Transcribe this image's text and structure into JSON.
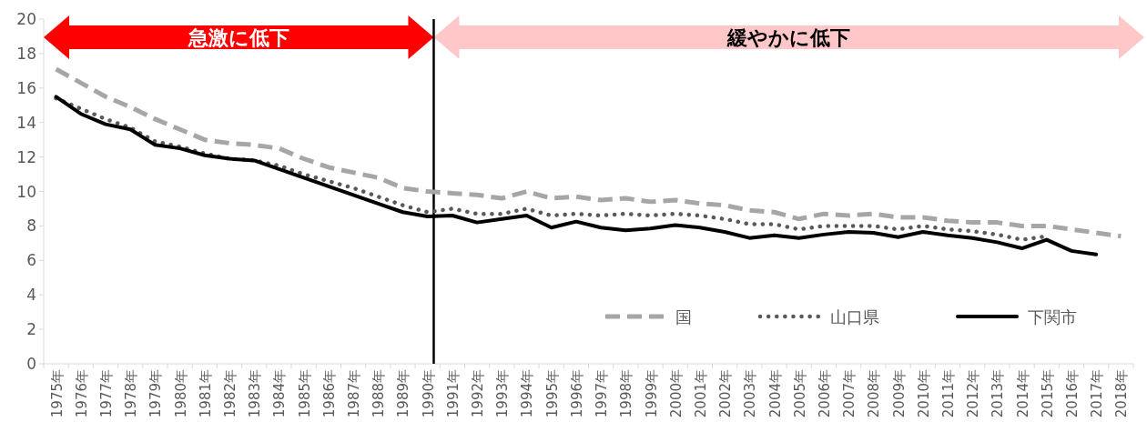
{
  "chart_data": {
    "type": "line",
    "categories": [
      "1975年",
      "1976年",
      "1977年",
      "1978年",
      "1979年",
      "1980年",
      "1981年",
      "1982年",
      "1983年",
      "1984年",
      "1985年",
      "1986年",
      "1987年",
      "1988年",
      "1989年",
      "1990年",
      "1991年",
      "1992年",
      "1993年",
      "1994年",
      "1995年",
      "1996年",
      "1997年",
      "1998年",
      "1999年",
      "2000年",
      "2001年",
      "2002年",
      "2003年",
      "2004年",
      "2005年",
      "2006年",
      "2007年",
      "2008年",
      "2009年",
      "2010年",
      "2011年",
      "2012年",
      "2013年",
      "2014年",
      "2015年",
      "2016年",
      "2017年",
      "2018年"
    ],
    "series": [
      {
        "name": "国",
        "color": "#a6a6a6",
        "line_style": "dashed",
        "values": [
          17.1,
          16.3,
          15.5,
          14.9,
          14.2,
          13.6,
          13.0,
          12.8,
          12.7,
          12.5,
          11.9,
          11.4,
          11.1,
          10.8,
          10.2,
          10.0,
          9.9,
          9.8,
          9.6,
          10.0,
          9.6,
          9.7,
          9.5,
          9.6,
          9.4,
          9.5,
          9.3,
          9.2,
          8.9,
          8.8,
          8.4,
          8.7,
          8.6,
          8.7,
          8.5,
          8.5,
          8.3,
          8.2,
          8.2,
          8.0,
          8.0,
          7.8,
          7.6,
          7.4
        ]
      },
      {
        "name": "山口県",
        "color": "#595959",
        "line_style": "dotted",
        "values": [
          15.4,
          14.8,
          14.2,
          13.7,
          12.9,
          12.6,
          12.2,
          11.9,
          11.8,
          11.5,
          11.0,
          10.6,
          10.2,
          9.7,
          9.2,
          8.8,
          9.0,
          8.7,
          8.7,
          9.0,
          8.6,
          8.7,
          8.6,
          8.7,
          8.6,
          8.7,
          8.6,
          8.4,
          8.1,
          8.1,
          7.8,
          8.0,
          8.0,
          8.0,
          7.8,
          8.0,
          7.8,
          7.7,
          7.5,
          7.2,
          7.4,
          null,
          null,
          null
        ]
      },
      {
        "name": "下関市",
        "color": "#000000",
        "line_style": "solid",
        "values": [
          15.5,
          14.5,
          13.9,
          13.6,
          12.7,
          12.5,
          12.1,
          11.9,
          11.8,
          11.3,
          10.8,
          10.3,
          9.8,
          9.3,
          8.8,
          8.55,
          8.6,
          8.2,
          8.4,
          8.6,
          7.9,
          8.25,
          7.9,
          7.75,
          7.85,
          8.05,
          7.9,
          7.65,
          7.3,
          7.45,
          7.3,
          7.5,
          7.65,
          7.6,
          7.35,
          7.65,
          7.45,
          7.3,
          7.05,
          6.7,
          7.2,
          6.55,
          6.35,
          null
        ]
      }
    ],
    "ylim": [
      0,
      20
    ],
    "yticks": [
      0,
      2,
      4,
      6,
      8,
      10,
      12,
      14,
      16,
      18,
      20
    ],
    "grid": false,
    "legend": "bottom right",
    "marker": "none",
    "ref_lines": [
      {
        "axis": "x",
        "value": "1990年",
        "color": "#000000"
      }
    ],
    "annotations": [
      "急激に低下",
      "緩やかに低下"
    ]
  }
}
